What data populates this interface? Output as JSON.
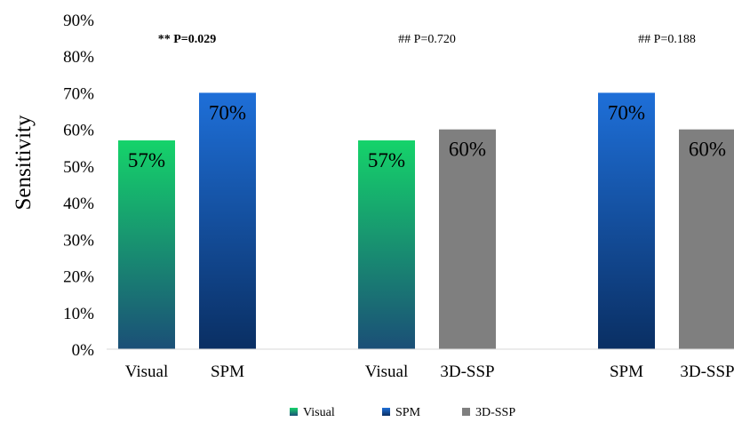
{
  "chart_data": {
    "type": "bar",
    "ylabel": "Sensitivity",
    "ylim": [
      0,
      90
    ],
    "yticks": [
      "0%",
      "10%",
      "20%",
      "30%",
      "40%",
      "50%",
      "60%",
      "70%",
      "80%",
      "90%"
    ],
    "grid": false,
    "legend_position": "bottom",
    "series_styles": {
      "Visual": {
        "top": "#15d36a",
        "bottom": "#1b4f77"
      },
      "SPM": {
        "top": "#1e6fd8",
        "bottom": "#0a2f63"
      },
      "3D-SSP": {
        "top": "#7f7f7f",
        "bottom": "#7f7f7f"
      }
    },
    "legend": [
      "Visual",
      "SPM",
      "3D-SSP"
    ],
    "groups": [
      {
        "annotation": "** P=0.029",
        "annotation_bold": true,
        "bars": [
          {
            "category": "Visual",
            "series": "Visual",
            "value": 57,
            "label": "57%"
          },
          {
            "category": "SPM",
            "series": "SPM",
            "value": 70,
            "label": "70%"
          }
        ]
      },
      {
        "annotation": "## P=0.720",
        "annotation_bold": false,
        "bars": [
          {
            "category": "Visual",
            "series": "Visual",
            "value": 57,
            "label": "57%"
          },
          {
            "category": "3D-SSP",
            "series": "3D-SSP",
            "value": 60,
            "label": "60%"
          }
        ]
      },
      {
        "annotation": "## P=0.188",
        "annotation_bold": false,
        "bars": [
          {
            "category": "SPM",
            "series": "SPM",
            "value": 70,
            "label": "70%"
          },
          {
            "category": "3D-SSP",
            "series": "3D-SSP",
            "value": 60,
            "label": "60%"
          }
        ]
      }
    ]
  }
}
